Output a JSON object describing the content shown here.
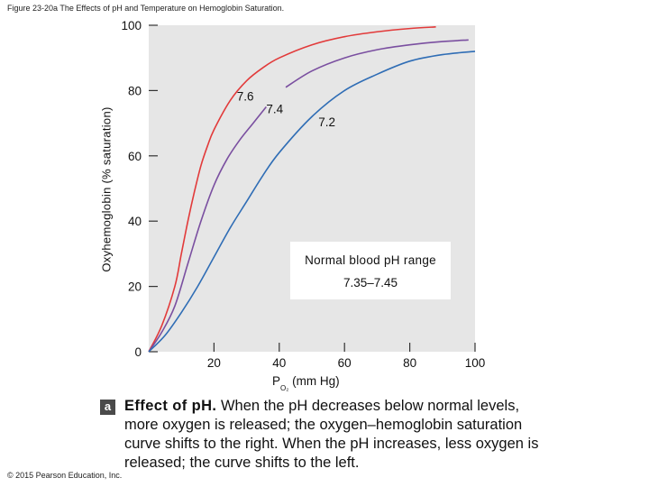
{
  "figure_title": "Figure 23-20a The Effects of pH and Temperature on Hemoglobin Saturation.",
  "copyright": "© 2015 Pearson Education, Inc.",
  "caption": {
    "badge": "a",
    "lead": "Effect of pH.",
    "text": " When the pH decreases below normal levels, more oxygen is released; the oxygen–hemoglobin saturation curve shifts to the right. When the pH increases, less oxygen is released; the curve shifts to the left."
  },
  "chart_data": {
    "type": "line",
    "ylabel": "Oxyhemoglobin (% saturation)",
    "xlabel_main": "P",
    "xlabel_sub": "O₂",
    "xlabel_unit": " (mm Hg)",
    "xlim": [
      0,
      100
    ],
    "ylim": [
      0,
      100
    ],
    "x_ticks": [
      20,
      40,
      60,
      80,
      100
    ],
    "y_ticks": [
      0,
      20,
      40,
      60,
      80,
      100
    ],
    "shaded_region": {
      "x_min": 0,
      "x_max": 100,
      "y_min": 0,
      "y_max": 100
    },
    "annotation_box": {
      "line1": "Normal blood pH range",
      "line2": "7.35–7.45"
    },
    "series": [
      {
        "name": "7.6",
        "color": "#e23a3a",
        "label_at": [
          27,
          77
        ],
        "x": [
          0,
          4,
          8,
          10,
          12,
          14,
          16,
          18,
          20,
          25,
          30,
          35,
          40,
          50,
          60,
          70,
          80,
          88
        ],
        "y": [
          0,
          8,
          20,
          30,
          40,
          49,
          57,
          63,
          68,
          77,
          83,
          87,
          90,
          94,
          96.5,
          98,
          99,
          99.5
        ]
      },
      {
        "name": "7.4",
        "color": "#7a4fa0",
        "label_at": [
          36,
          73
        ],
        "x": [
          0,
          4,
          8,
          12,
          16,
          20,
          24,
          28,
          32,
          36
        ],
        "y": [
          0,
          6,
          14,
          27,
          40,
          51,
          59,
          65,
          70,
          75
        ]
      },
      {
        "name": "7.4",
        "color": "#7a4fa0",
        "label_at": null,
        "x": [
          42,
          50,
          60,
          70,
          80,
          90,
          98
        ],
        "y": [
          81,
          86,
          90,
          92.5,
          94,
          95,
          95.5
        ]
      },
      {
        "name": "7.2",
        "color": "#2f6db5",
        "label_at": [
          52,
          69
        ],
        "x": [
          0,
          5,
          10,
          15,
          20,
          25,
          30,
          35,
          40,
          50,
          60,
          70,
          80,
          90,
          100
        ],
        "y": [
          0,
          5,
          12,
          20,
          29,
          38,
          46,
          54,
          61,
          72,
          80,
          85,
          89,
          91,
          92
        ]
      }
    ]
  }
}
